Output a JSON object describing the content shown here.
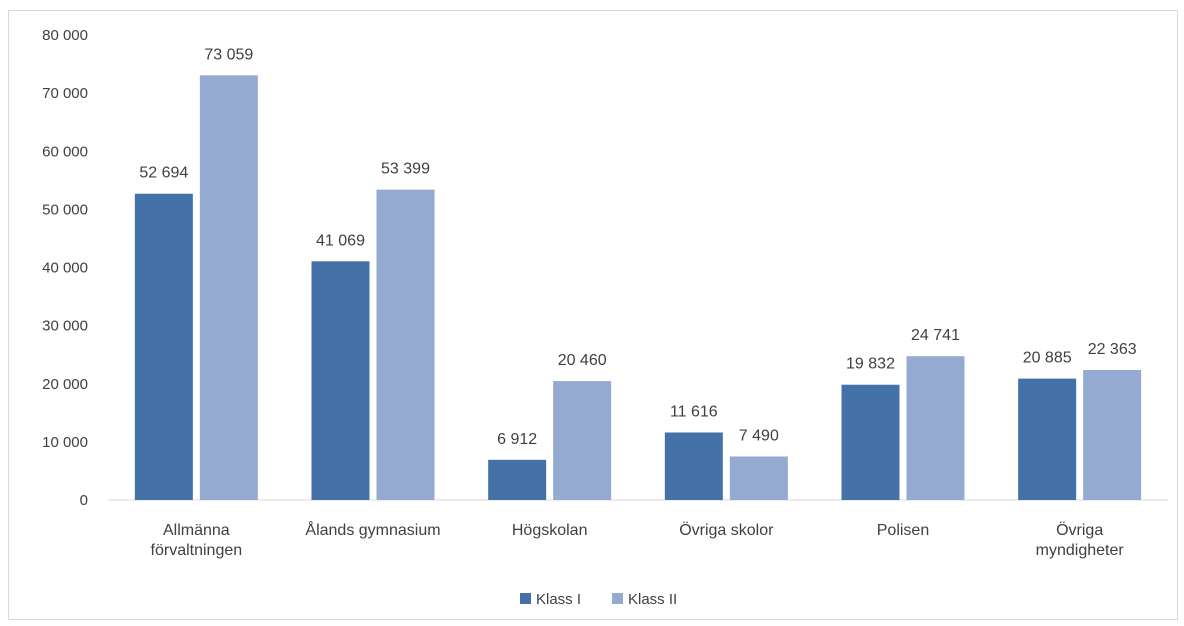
{
  "chart_data": {
    "type": "bar",
    "title": "",
    "xlabel": "",
    "ylabel": "",
    "ylim": [
      0,
      80000
    ],
    "yticks": [
      0,
      10000,
      20000,
      30000,
      40000,
      50000,
      60000,
      70000,
      80000
    ],
    "ytick_labels": [
      "0",
      "10 000",
      "20 000",
      "30 000",
      "40 000",
      "50 000",
      "60 000",
      "70 000",
      "80 000"
    ],
    "categories": [
      [
        "Allmänna",
        "förvaltningen"
      ],
      [
        "Ålands gymnasium"
      ],
      [
        "Högskolan"
      ],
      [
        "Övriga skolor"
      ],
      [
        "Polisen"
      ],
      [
        "Övriga",
        "myndigheter"
      ]
    ],
    "series": [
      {
        "name": "Klass I",
        "color": "#4472a8",
        "values": [
          52694,
          41069,
          6912,
          11616,
          19832,
          20885
        ],
        "labels": [
          "52 694",
          "41 069",
          "6 912",
          "11 616",
          "19 832",
          "20 885"
        ]
      },
      {
        "name": "Klass II",
        "color": "#95aad1",
        "values": [
          73059,
          53399,
          20460,
          7490,
          24741,
          22363
        ],
        "labels": [
          "73 059",
          "53 399",
          "20 460",
          "7 490",
          "24 741",
          "22 363"
        ]
      }
    ],
    "grid": false,
    "legend_position": "bottom-center"
  }
}
